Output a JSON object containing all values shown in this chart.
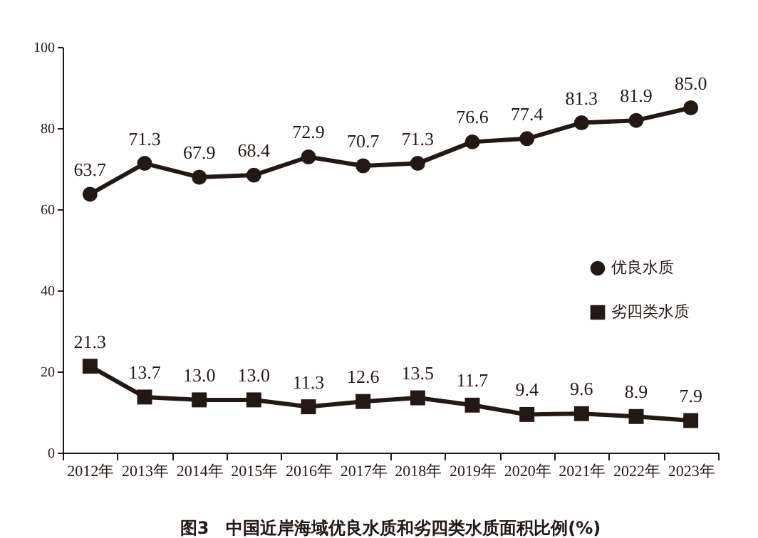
{
  "chart_data": {
    "type": "line",
    "title": "图3　中国近岸海域优良水质和劣四类水质面积比例(%)",
    "categories": [
      "2012年",
      "2013年",
      "2014年",
      "2015年",
      "2016年",
      "2017年",
      "2018年",
      "2019年",
      "2020年",
      "2021年",
      "2022年",
      "2023年"
    ],
    "series": [
      {
        "name": "优良水质",
        "color": "#231815",
        "marker": "circle",
        "values": [
          63.7,
          71.3,
          67.9,
          68.4,
          72.9,
          70.7,
          71.3,
          76.6,
          77.4,
          81.3,
          81.9,
          85.0
        ],
        "value_labels": [
          "63.7",
          "71.3",
          "67.9",
          "68.4",
          "72.9",
          "70.7",
          "71.3",
          "76.6",
          "77.4",
          "81.3",
          "81.9",
          "85.0"
        ]
      },
      {
        "name": "劣四类水质",
        "color": "#231815",
        "marker": "square",
        "values": [
          21.3,
          13.7,
          13.0,
          13.0,
          11.3,
          12.6,
          13.5,
          11.7,
          9.4,
          9.6,
          8.9,
          7.9
        ],
        "value_labels": [
          "21.3",
          "13.7",
          "13.0",
          "13.0",
          "11.3",
          "12.6",
          "13.5",
          "11.7",
          "9.4",
          "9.6",
          "8.9",
          "7.9"
        ]
      }
    ],
    "ylim": [
      0,
      100
    ],
    "yticks": [
      0,
      20,
      40,
      60,
      80,
      100
    ],
    "grid": false,
    "legend": "right",
    "line_style": "solid"
  }
}
